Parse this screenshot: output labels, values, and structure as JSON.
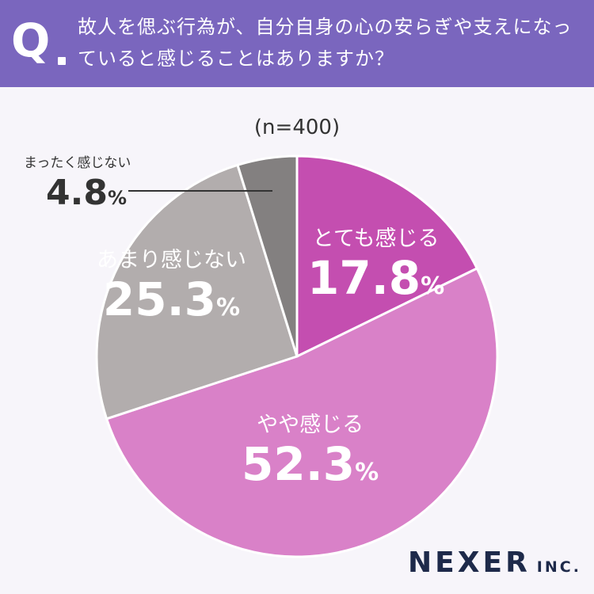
{
  "header": {
    "q_mark": "Q",
    "question": "故人を偲ぶ行為が、自分自身の心の安らぎや支えになっていると感じることはありますか？"
  },
  "chart_data": {
    "type": "pie",
    "subtitle": "(n=400)",
    "categories": [
      "とても感じる",
      "やや感じる",
      "あまり感じない",
      "まったく感じない"
    ],
    "values": [
      17.8,
      52.3,
      25.3,
      4.8
    ],
    "value_labels": [
      "17.8",
      "52.3",
      "25.3",
      "4.8"
    ],
    "unit": "%",
    "colors": [
      "#c44eb0",
      "#d981c8",
      "#b2adad",
      "#838080"
    ],
    "start_angle": "12 o'clock",
    "direction": "clockwise"
  },
  "brand": {
    "name": "NEXER",
    "suffix": "INC."
  }
}
